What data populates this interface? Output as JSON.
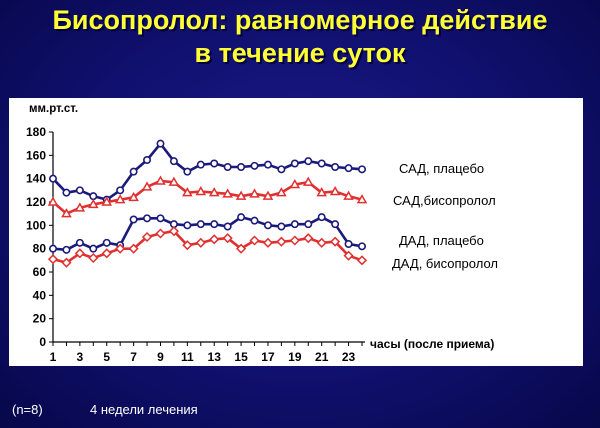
{
  "title_line1": "Бисопролол: равномерное действие",
  "title_line2": "в течение суток",
  "footer": {
    "n": "(n=8)",
    "duration": "4 недели лечения"
  },
  "colors": {
    "placebo": "#1a1a7a",
    "bisoprolol": "#e03030",
    "background": "#10106e",
    "title": "#ffff33"
  },
  "chart_data": {
    "type": "line",
    "ylabel": "мм.рт.ст.",
    "xlabel": "часы (после приема)",
    "ylim": [
      0,
      180
    ],
    "yticks": [
      0,
      20,
      40,
      60,
      80,
      100,
      120,
      140,
      160,
      180
    ],
    "x": [
      1,
      2,
      3,
      4,
      5,
      6,
      7,
      8,
      9,
      10,
      11,
      12,
      13,
      14,
      15,
      16,
      17,
      18,
      19,
      20,
      21,
      22,
      23,
      24
    ],
    "xtick_labels": [
      "1",
      "3",
      "5",
      "7",
      "9",
      "11",
      "13",
      "15",
      "17",
      "19",
      "21",
      "23"
    ],
    "grid": false,
    "series": [
      {
        "name": "САД, плацебо",
        "marker": "circle",
        "color_key": "placebo",
        "values": [
          140,
          128,
          130,
          125,
          122,
          130,
          146,
          156,
          170,
          155,
          146,
          152,
          153,
          150,
          150,
          151,
          152,
          148,
          153,
          155,
          153,
          150,
          149,
          148
        ]
      },
      {
        "name": "САД,бисопролол",
        "marker": "triangle",
        "color_key": "bisoprolol",
        "values": [
          120,
          110,
          115,
          118,
          120,
          122,
          124,
          133,
          138,
          137,
          128,
          129,
          128,
          127,
          125,
          127,
          125,
          128,
          135,
          137,
          128,
          129,
          125,
          122
        ]
      },
      {
        "name": "ДАД, плацебо",
        "marker": "circle",
        "color_key": "placebo",
        "values": [
          80,
          79,
          85,
          80,
          85,
          83,
          105,
          106,
          106,
          101,
          100,
          101,
          101,
          99,
          107,
          104,
          100,
          99,
          101,
          101,
          107,
          101,
          84,
          82
        ]
      },
      {
        "name": "ДАД, бисопролол",
        "marker": "diamond",
        "color_key": "bisoprolol",
        "values": [
          71,
          68,
          76,
          72,
          76,
          80,
          80,
          90,
          93,
          95,
          83,
          85,
          88,
          89,
          80,
          87,
          85,
          86,
          87,
          89,
          85,
          86,
          74,
          70
        ]
      }
    ]
  }
}
